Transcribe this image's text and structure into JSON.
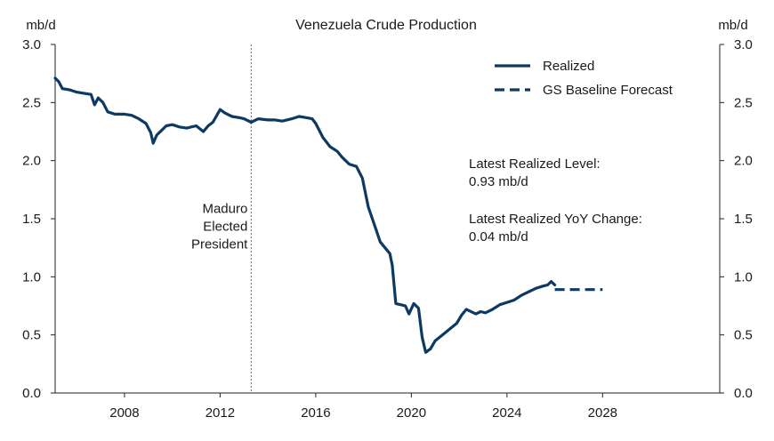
{
  "chart_data": {
    "type": "line",
    "title": "Venezuela Crude Production",
    "ylabel_left": "mb/d",
    "ylabel_right": "mb/d",
    "xlabel": "",
    "xlim": [
      2005.1,
      2032.9
    ],
    "ylim": [
      0,
      3.0
    ],
    "x_ticks": [
      2008,
      2012,
      2016,
      2020,
      2024,
      2028
    ],
    "x_tick_labels": [
      "2008",
      "2012",
      "2016",
      "2020",
      "2024",
      "2028"
    ],
    "y_ticks": [
      0,
      0.5,
      1.0,
      1.5,
      2.0,
      2.5,
      3.0
    ],
    "y_tick_labels": [
      "0.0",
      "0.5",
      "1.0",
      "1.5",
      "2.0",
      "2.5",
      "3.0"
    ],
    "grid": false,
    "legend_position": "top-right",
    "series": [
      {
        "name": "Realized",
        "style": "solid",
        "color": "#0d3a63",
        "x": [
          2005.1,
          2005.25,
          2005.4,
          2005.7,
          2006.0,
          2006.3,
          2006.6,
          2006.75,
          2006.9,
          2007.1,
          2007.3,
          2007.6,
          2008.0,
          2008.3,
          2008.6,
          2008.9,
          2009.1,
          2009.2,
          2009.35,
          2009.55,
          2009.75,
          2010.0,
          2010.3,
          2010.6,
          2011.0,
          2011.3,
          2011.5,
          2011.7,
          2012.0,
          2012.2,
          2012.5,
          2012.8,
          2013.0,
          2013.3,
          2013.6,
          2014.0,
          2014.3,
          2014.6,
          2015.0,
          2015.3,
          2015.6,
          2015.85,
          2016.0,
          2016.3,
          2016.6,
          2016.9,
          2017.1,
          2017.4,
          2017.7,
          2017.95,
          2018.2,
          2018.5,
          2018.7,
          2018.9,
          2019.1,
          2019.2,
          2019.35,
          2019.55,
          2019.75,
          2019.9,
          2020.1,
          2020.3,
          2020.45,
          2020.6,
          2020.8,
          2021.0,
          2021.3,
          2021.6,
          2021.9,
          2022.1,
          2022.3,
          2022.5,
          2022.7,
          2022.9,
          2023.1,
          2023.4,
          2023.7,
          2024.0,
          2024.3,
          2024.6,
          2024.9,
          2025.2,
          2025.5,
          2025.7,
          2025.85,
          2026.0
        ],
        "y": [
          2.71,
          2.68,
          2.62,
          2.61,
          2.59,
          2.58,
          2.57,
          2.48,
          2.54,
          2.5,
          2.42,
          2.4,
          2.4,
          2.39,
          2.36,
          2.32,
          2.24,
          2.15,
          2.22,
          2.26,
          2.3,
          2.31,
          2.29,
          2.28,
          2.3,
          2.25,
          2.3,
          2.33,
          2.44,
          2.41,
          2.38,
          2.37,
          2.36,
          2.33,
          2.36,
          2.35,
          2.35,
          2.34,
          2.36,
          2.38,
          2.37,
          2.36,
          2.32,
          2.2,
          2.12,
          2.08,
          2.03,
          1.97,
          1.95,
          1.85,
          1.6,
          1.42,
          1.3,
          1.25,
          1.2,
          1.1,
          0.77,
          0.76,
          0.75,
          0.68,
          0.77,
          0.73,
          0.48,
          0.35,
          0.38,
          0.45,
          0.5,
          0.55,
          0.6,
          0.67,
          0.72,
          0.7,
          0.68,
          0.7,
          0.69,
          0.72,
          0.76,
          0.78,
          0.8,
          0.84,
          0.87,
          0.9,
          0.92,
          0.93,
          0.96,
          0.93
        ]
      },
      {
        "name": "GS Baseline Forecast",
        "style": "dashed",
        "color": "#0d3a63",
        "x": [
          2026.0,
          2028.0
        ],
        "y": [
          0.89,
          0.89
        ]
      }
    ],
    "vertical_line": {
      "x": 2013.3,
      "style": "dotted",
      "label_lines": [
        "Maduro",
        "Elected",
        "President"
      ]
    },
    "annotations": [
      {
        "lines": [
          "Latest Realized Level:",
          "0.93 mb/d"
        ]
      },
      {
        "lines": [
          "Latest Realized YoY Change:",
          "0.04 mb/d"
        ]
      }
    ]
  }
}
